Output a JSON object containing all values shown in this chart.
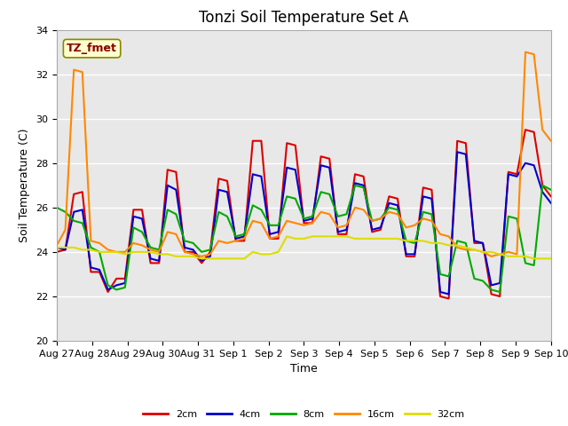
{
  "title": "Tonzi Soil Temperature Set A",
  "xlabel": "Time",
  "ylabel": "Soil Temperature (C)",
  "ylim": [
    20,
    34
  ],
  "annotation_text": "TZ_fmet",
  "legend_labels": [
    "2cm",
    "4cm",
    "8cm",
    "16cm",
    "32cm"
  ],
  "line_colors": [
    "#dd0000",
    "#0000cc",
    "#00aa00",
    "#ff8800",
    "#dddd00"
  ],
  "x_tick_labels": [
    "Aug 27",
    "Aug 28",
    "Aug 29",
    "Aug 30",
    "Aug 31",
    "Sep 1",
    "Sep 2",
    "Sep 3",
    "Sep 4",
    "Sep 5",
    "Sep 6",
    "Sep 7",
    "Sep 8",
    "Sep 9",
    "Sep 10"
  ],
  "plot_bg_color": "#e8e8e8",
  "fig_bg_color": "#ffffff",
  "grid_color": "#ffffff",
  "title_fontsize": 12,
  "label_fontsize": 9,
  "tick_fontsize": 8,
  "line_width": 1.5,
  "data_2cm": [
    24.0,
    24.1,
    26.6,
    26.7,
    23.1,
    23.1,
    22.2,
    22.8,
    22.8,
    25.9,
    25.9,
    23.5,
    23.5,
    27.7,
    27.6,
    24.0,
    24.0,
    23.5,
    24.0,
    27.3,
    27.2,
    24.5,
    24.5,
    29.0,
    29.0,
    24.6,
    24.6,
    28.9,
    28.8,
    25.3,
    25.3,
    28.3,
    28.2,
    24.8,
    24.8,
    27.5,
    27.4,
    24.9,
    25.0,
    26.5,
    26.4,
    23.8,
    23.8,
    26.9,
    26.8,
    22.0,
    21.9,
    29.0,
    28.9,
    24.4,
    24.4,
    22.1,
    22.0,
    27.6,
    27.5,
    29.5,
    29.4,
    27.0,
    26.5
  ],
  "data_4cm": [
    24.2,
    24.1,
    25.8,
    25.9,
    23.3,
    23.2,
    22.3,
    22.5,
    22.6,
    25.6,
    25.5,
    23.7,
    23.6,
    27.0,
    26.8,
    24.2,
    24.1,
    23.6,
    23.8,
    26.8,
    26.7,
    24.6,
    24.7,
    27.5,
    27.4,
    24.8,
    24.9,
    27.8,
    27.7,
    25.4,
    25.5,
    27.9,
    27.8,
    24.9,
    25.0,
    27.1,
    27.0,
    25.0,
    25.1,
    26.2,
    26.1,
    23.9,
    23.9,
    26.5,
    26.4,
    22.2,
    22.1,
    28.5,
    28.4,
    24.5,
    24.4,
    22.5,
    22.6,
    27.5,
    27.4,
    28.0,
    27.9,
    26.7,
    26.2
  ],
  "data_8cm": [
    26.0,
    25.8,
    25.4,
    25.3,
    24.2,
    24.0,
    22.5,
    22.3,
    22.4,
    25.1,
    24.9,
    24.2,
    24.1,
    25.9,
    25.7,
    24.5,
    24.4,
    24.0,
    24.1,
    25.8,
    25.6,
    24.7,
    24.8,
    26.1,
    25.9,
    25.2,
    25.2,
    26.5,
    26.4,
    25.5,
    25.6,
    26.7,
    26.6,
    25.6,
    25.7,
    27.0,
    26.9,
    25.4,
    25.5,
    26.0,
    25.9,
    24.5,
    24.4,
    25.8,
    25.7,
    23.0,
    22.9,
    24.5,
    24.4,
    22.8,
    22.7,
    22.3,
    22.2,
    25.6,
    25.5,
    23.5,
    23.4,
    27.0,
    26.8
  ],
  "data_16cm": [
    24.3,
    25.0,
    32.2,
    32.1,
    24.5,
    24.4,
    24.1,
    24.0,
    24.0,
    24.4,
    24.3,
    24.1,
    24.0,
    24.9,
    24.8,
    24.0,
    23.9,
    23.8,
    23.9,
    24.5,
    24.4,
    24.5,
    24.6,
    25.4,
    25.3,
    24.6,
    24.7,
    25.4,
    25.3,
    25.2,
    25.3,
    25.8,
    25.7,
    25.1,
    25.2,
    26.0,
    25.9,
    25.4,
    25.5,
    25.8,
    25.7,
    25.1,
    25.2,
    25.5,
    25.4,
    24.8,
    24.7,
    24.2,
    24.1,
    24.1,
    24.0,
    23.8,
    23.9,
    24.0,
    23.9,
    33.0,
    32.9,
    29.5,
    29.0
  ],
  "data_32cm": [
    24.2,
    24.2,
    24.2,
    24.1,
    24.1,
    24.0,
    24.0,
    24.0,
    23.9,
    24.0,
    24.0,
    24.0,
    23.9,
    23.9,
    23.8,
    23.8,
    23.8,
    23.7,
    23.7,
    23.7,
    23.7,
    23.7,
    23.7,
    24.0,
    23.9,
    23.9,
    24.0,
    24.7,
    24.6,
    24.6,
    24.7,
    24.7,
    24.7,
    24.7,
    24.7,
    24.6,
    24.6,
    24.6,
    24.6,
    24.6,
    24.6,
    24.5,
    24.5,
    24.5,
    24.4,
    24.4,
    24.3,
    24.3,
    24.2,
    24.1,
    24.0,
    24.0,
    23.9,
    23.8,
    23.8,
    23.8,
    23.7,
    23.7,
    23.7
  ]
}
